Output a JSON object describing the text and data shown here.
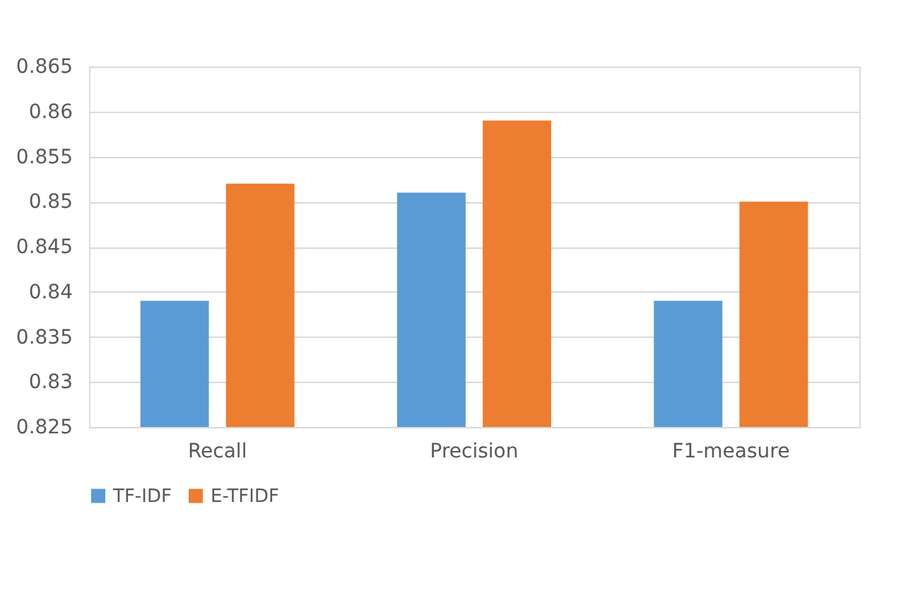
{
  "chart_data": {
    "type": "bar",
    "categories": [
      "Recall",
      "Precision",
      "F1-measure"
    ],
    "series": [
      {
        "name": "TF-IDF",
        "color": "#5b9bd5",
        "values": [
          0.839,
          0.851,
          0.839
        ]
      },
      {
        "name": "E-TFIDF",
        "color": "#ed7d31",
        "values": [
          0.852,
          0.859,
          0.85
        ]
      }
    ],
    "ylim": [
      0.825,
      0.865
    ],
    "yticks": [
      0.825,
      0.83,
      0.835,
      0.84,
      0.845,
      0.85,
      0.855,
      0.86,
      0.865
    ],
    "grid": "y",
    "legend": "bottom"
  }
}
